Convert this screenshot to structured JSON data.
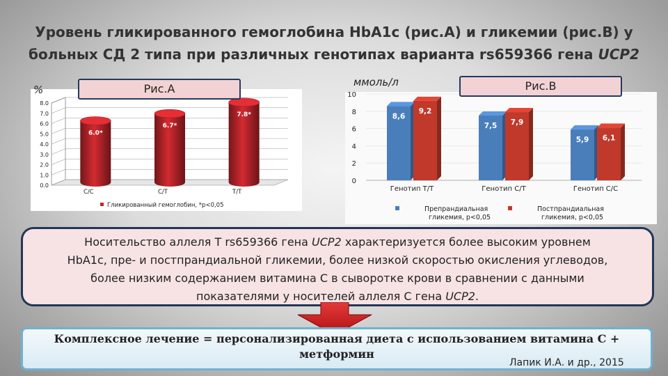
{
  "title_line1": "Уровень гликированного гемоглобина HbA1c (рис.А) и гликемии (рис.В) у",
  "title_line2_pre": "больных СД 2 типа при различных генотипах варианта rs659366 гена ",
  "title_line2_gene": "UCP2",
  "chart_data": [
    {
      "type": "bar",
      "label": "Рис.А",
      "ylabel": "%",
      "ylim": [
        0,
        8
      ],
      "yticks": [
        "0.0",
        "1.0",
        "2.0",
        "3.0",
        "4.0",
        "5.0",
        "6.0",
        "7.0",
        "8.0"
      ],
      "categories": [
        "C/C",
        "C/T",
        "T/T"
      ],
      "values": [
        6.0,
        6.7,
        7.8
      ],
      "data_labels": [
        "6.0*",
        "6.7*",
        "7.8*"
      ],
      "legend": "Гликированный  гемоглобин, *p<0,05",
      "color": "#c0262c"
    },
    {
      "type": "bar",
      "label": "Рис.В",
      "ylabel": "ммоль/л",
      "ylim": [
        0,
        10
      ],
      "yticks": [
        "0",
        "2",
        "4",
        "6",
        "8",
        "10"
      ],
      "categories": [
        "Генотип Т/Т",
        "Генотип C/T",
        "Генотип C/C"
      ],
      "series": [
        {
          "name_line1": "Препрандиальная",
          "name_line2": "гликемия, p<0,05",
          "values": [
            8.6,
            7.5,
            5.9
          ],
          "data_labels": [
            "8,6",
            "7,5",
            "5,9"
          ],
          "color": "#4a7ebb"
        },
        {
          "name_line1": "Постпрандиальная",
          "name_line2": "гликемия, p<0,05",
          "values": [
            9.2,
            7.9,
            6.1
          ],
          "data_labels": [
            "9,2",
            "7,9",
            "6,1"
          ],
          "color": "#c0392b"
        }
      ]
    }
  ],
  "finding": {
    "l1a": "Носительство аллеля Т rs659366 гена ",
    "gene1": "UCP2",
    "l1b": " характеризуется более высоким уровнем",
    "l2": "HbA1c, пре- и постпрандиальной гликемии, более низкой скоростью окисления углеводов,",
    "l3": "более низким содержанием  витамина С в сыворотке крови в сравнении с данными",
    "l4a": "показателями у носителей аллеля С гена ",
    "gene2": "UCP2",
    "l4b": "."
  },
  "conclusion_line1": "Комплексное лечение = персонализированная диета с использованием витамина С +",
  "conclusion_line2": "метформин",
  "citation": "Лапик И.А. и др., 2015"
}
